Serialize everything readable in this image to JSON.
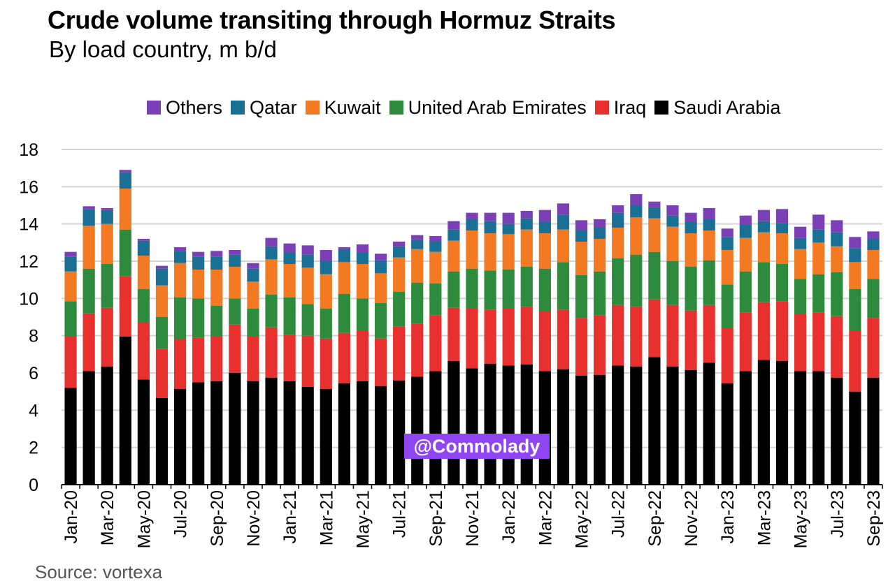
{
  "header": {
    "title": "Crude volume transiting through Hormuz Straits",
    "subtitle": "By load country, m b/d"
  },
  "footer": {
    "source": "Source: vortexa"
  },
  "watermark": {
    "text": "@Commolady"
  },
  "chart_data": {
    "type": "bar",
    "stacked": true,
    "title": "Crude volume transiting through Hormuz Straits",
    "subtitle": "By load country, m b/d",
    "xlabel": "",
    "ylabel": "",
    "ylim": [
      0,
      18
    ],
    "yticks": [
      0,
      2,
      4,
      6,
      8,
      10,
      12,
      14,
      16,
      18
    ],
    "grid": true,
    "legend_position": "top",
    "categories": [
      "Jan-20",
      "Feb-20",
      "Mar-20",
      "Apr-20",
      "May-20",
      "Jun-20",
      "Jul-20",
      "Aug-20",
      "Sep-20",
      "Oct-20",
      "Nov-20",
      "Dec-20",
      "Jan-21",
      "Feb-21",
      "Mar-21",
      "Apr-21",
      "May-21",
      "Jun-21",
      "Jul-21",
      "Aug-21",
      "Sep-21",
      "Oct-21",
      "Nov-21",
      "Dec-21",
      "Jan-22",
      "Feb-22",
      "Mar-22",
      "Apr-22",
      "May-22",
      "Jun-22",
      "Jul-22",
      "Aug-22",
      "Sep-22",
      "Oct-22",
      "Nov-22",
      "Dec-22",
      "Jan-23",
      "Feb-23",
      "Mar-23",
      "Apr-23",
      "May-23",
      "Jun-23",
      "Jul-23",
      "Aug-23",
      "Sep-23"
    ],
    "tick_labels": [
      "Jan-20",
      "Mar-20",
      "May-20",
      "Jul-20",
      "Sep-20",
      "Nov-20",
      "Jan-21",
      "Mar-21",
      "May-21",
      "Jul-21",
      "Sep-21",
      "Nov-21",
      "Jan-22",
      "Mar-22",
      "May-22",
      "Jul-22",
      "Sep-22",
      "Nov-22",
      "Jan-23",
      "Mar-23",
      "May-23",
      "Jul-23",
      "Sep-23"
    ],
    "series": [
      {
        "name": "Saudi Arabia",
        "color": "#000000",
        "values": [
          5.2,
          6.1,
          6.35,
          7.95,
          5.65,
          4.65,
          5.15,
          5.5,
          5.55,
          6.0,
          5.55,
          5.75,
          5.55,
          5.25,
          5.15,
          5.45,
          5.55,
          5.3,
          5.6,
          5.8,
          6.1,
          6.65,
          6.25,
          6.5,
          6.4,
          6.45,
          6.1,
          6.2,
          5.85,
          5.9,
          6.4,
          6.35,
          6.85,
          6.35,
          6.15,
          6.55,
          5.45,
          6.1,
          6.7,
          6.65,
          6.1,
          6.1,
          5.75,
          5.0,
          5.75
        ]
      },
      {
        "name": "Iraq",
        "color": "#e8312f",
        "values": [
          2.75,
          3.1,
          3.15,
          3.25,
          3.05,
          2.65,
          2.65,
          2.4,
          2.4,
          2.6,
          2.4,
          2.7,
          2.5,
          2.75,
          2.7,
          2.7,
          2.7,
          2.55,
          2.9,
          2.85,
          3.0,
          2.85,
          3.2,
          2.9,
          3.05,
          3.1,
          3.2,
          3.2,
          3.1,
          3.2,
          3.25,
          3.2,
          3.1,
          3.3,
          3.2,
          3.1,
          2.95,
          3.15,
          3.1,
          3.2,
          3.05,
          3.15,
          3.3,
          3.25,
          3.2
        ]
      },
      {
        "name": "United Arab Emirates",
        "color": "#2e8b3e",
        "values": [
          1.9,
          2.4,
          2.35,
          2.5,
          1.8,
          1.7,
          2.25,
          2.1,
          1.65,
          1.4,
          1.5,
          1.75,
          2.0,
          1.7,
          1.6,
          2.1,
          1.75,
          1.9,
          1.85,
          2.2,
          1.7,
          1.95,
          2.15,
          2.1,
          2.1,
          2.15,
          2.3,
          2.55,
          2.3,
          2.35,
          2.5,
          2.8,
          2.55,
          2.35,
          2.35,
          2.4,
          2.35,
          2.2,
          2.15,
          2.0,
          1.9,
          2.05,
          2.35,
          2.25,
          2.1
        ]
      },
      {
        "name": "Kuwait",
        "color": "#f37a23",
        "values": [
          1.6,
          2.3,
          2.15,
          2.2,
          1.8,
          1.7,
          1.85,
          1.55,
          1.95,
          1.7,
          1.45,
          1.9,
          1.8,
          1.95,
          1.85,
          1.7,
          1.85,
          1.6,
          1.85,
          1.8,
          1.7,
          1.65,
          2.05,
          2.0,
          1.9,
          2.0,
          1.9,
          1.75,
          1.8,
          1.75,
          1.65,
          2.0,
          1.8,
          1.85,
          1.8,
          1.6,
          1.85,
          1.8,
          1.6,
          1.65,
          1.6,
          1.7,
          1.4,
          1.45,
          1.55
        ]
      },
      {
        "name": "Qatar",
        "color": "#1a6f95",
        "values": [
          0.8,
          0.9,
          0.75,
          0.85,
          0.8,
          0.9,
          0.65,
          0.7,
          0.7,
          0.65,
          0.7,
          0.7,
          0.6,
          0.7,
          0.7,
          0.7,
          0.6,
          0.7,
          0.6,
          0.5,
          0.55,
          0.6,
          0.6,
          0.65,
          0.55,
          0.6,
          0.6,
          0.8,
          0.6,
          0.6,
          0.8,
          0.65,
          0.6,
          0.6,
          0.6,
          0.6,
          0.7,
          0.7,
          0.6,
          0.55,
          0.6,
          0.7,
          0.75,
          0.75,
          0.6
        ]
      },
      {
        "name": "Others",
        "color": "#7b3fb6",
        "values": [
          0.25,
          0.15,
          0.1,
          0.15,
          0.1,
          0.15,
          0.2,
          0.25,
          0.3,
          0.25,
          0.3,
          0.45,
          0.5,
          0.5,
          0.6,
          0.1,
          0.45,
          0.35,
          0.25,
          0.25,
          0.3,
          0.45,
          0.35,
          0.45,
          0.6,
          0.4,
          0.65,
          0.6,
          0.55,
          0.45,
          0.4,
          0.6,
          0.3,
          0.55,
          0.5,
          0.6,
          0.45,
          0.5,
          0.6,
          0.75,
          0.6,
          0.8,
          0.65,
          0.6,
          0.4
        ]
      }
    ]
  }
}
